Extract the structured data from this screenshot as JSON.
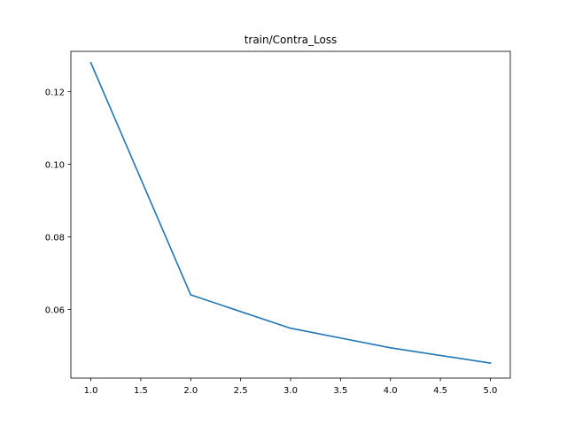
{
  "chart_data": {
    "type": "line",
    "title": "train/Contra_Loss",
    "xlabel": "",
    "ylabel": "",
    "x": [
      1.0,
      2.0,
      3.0,
      4.0,
      5.0
    ],
    "series": [
      {
        "values": [
          0.128,
          0.064,
          0.0548,
          0.0494,
          0.0452
        ],
        "color": "#1f77b4"
      }
    ],
    "xlim": [
      0.8,
      5.2
    ],
    "ylim": [
      0.04106,
      0.13114
    ],
    "xticks": [
      1.0,
      1.5,
      2.0,
      2.5,
      3.0,
      3.5,
      4.0,
      4.5,
      5.0
    ],
    "xtick_labels": [
      "1.0",
      "1.5",
      "2.0",
      "2.5",
      "3.0",
      "3.5",
      "4.0",
      "4.5",
      "5.0"
    ],
    "yticks": [
      0.06,
      0.08,
      0.1,
      0.12
    ],
    "ytick_labels": [
      "0.06",
      "0.08",
      "0.10",
      "0.12"
    ],
    "grid": false,
    "legend": "none"
  }
}
